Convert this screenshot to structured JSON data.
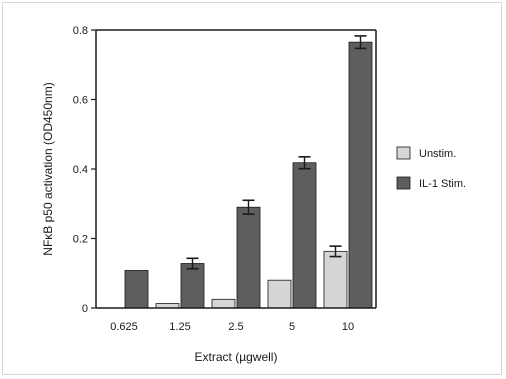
{
  "chart_data": {
    "type": "bar",
    "title": "",
    "xlabel": "Extract (µgwell)",
    "ylabel": "NFκB p50 activation (OD450nm)",
    "categories": [
      "0.625",
      "1.25",
      "2.5",
      "5",
      "10"
    ],
    "ylim": [
      0,
      0.8
    ],
    "yticks": [
      "0",
      "0.2",
      "0.4",
      "0.6",
      "0.8"
    ],
    "legend_position": "right",
    "grid": false,
    "series": [
      {
        "name": "Unstim.",
        "color": "#d6d6d6",
        "values": [
          0.0,
          0.013,
          0.025,
          0.08,
          0.163
        ],
        "errors": [
          0,
          0,
          0,
          0,
          0.015
        ]
      },
      {
        "name": "IL-1 Stim.",
        "color": "#5e5e5e",
        "values": [
          0.108,
          0.128,
          0.29,
          0.418,
          0.765
        ],
        "errors": [
          0,
          0.015,
          0.02,
          0.017,
          0.018
        ]
      }
    ]
  }
}
